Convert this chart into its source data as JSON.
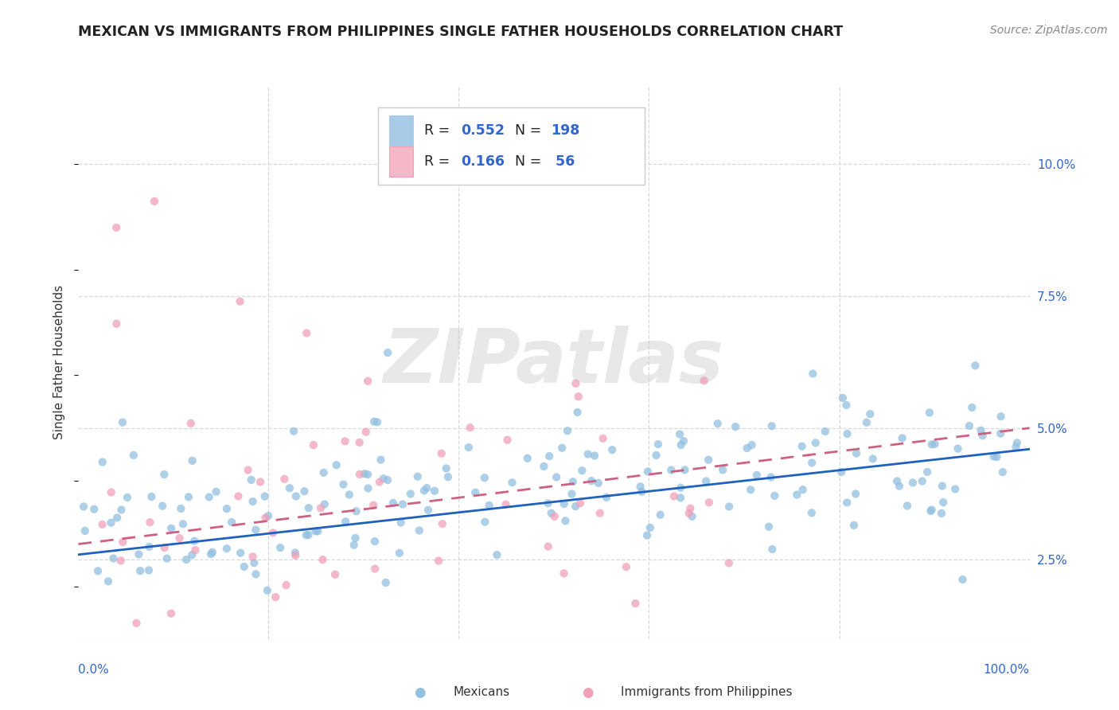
{
  "title": "MEXICAN VS IMMIGRANTS FROM PHILIPPINES SINGLE FATHER HOUSEHOLDS CORRELATION CHART",
  "source": "Source: ZipAtlas.com",
  "ylabel": "Single Father Households",
  "yticks_labels": [
    "2.5%",
    "5.0%",
    "7.5%",
    "10.0%"
  ],
  "ytick_vals": [
    0.025,
    0.05,
    0.075,
    0.1
  ],
  "xlim": [
    0.0,
    1.0
  ],
  "ylim": [
    0.01,
    0.115
  ],
  "blue_scatter_color": "#92c0e0",
  "pink_scatter_color": "#f0a0b8",
  "blue_line_color": "#2060c0",
  "pink_line_color": "#d06080",
  "blue_trend_y0": 0.026,
  "blue_trend_y1": 0.046,
  "pink_trend_y0": 0.028,
  "pink_trend_y1": 0.05,
  "watermark_text": "ZIPatlas",
  "background_color": "#ffffff",
  "grid_color": "#d8d8d8",
  "title_fontsize": 12.5,
  "source_fontsize": 10,
  "axis_label_fontsize": 11,
  "tick_fontsize": 11,
  "legend_r1": "0.552",
  "legend_n1": "198",
  "legend_r2": "0.166",
  "legend_n2": "56",
  "legend_blue_color": "#a8cce8",
  "legend_pink_color": "#f4b8c8",
  "ytick_color": "#3366cc",
  "xtick_color": "#3366cc",
  "bottom_legend_blue": "Mexicans",
  "bottom_legend_pink": "Immigrants from Philippines"
}
